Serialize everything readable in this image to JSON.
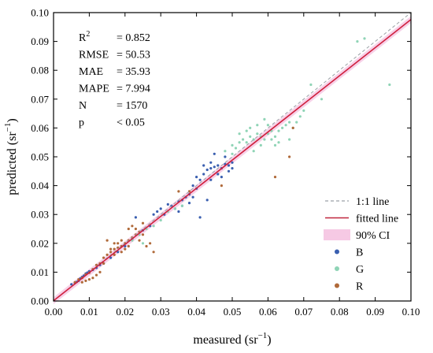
{
  "chart_data": {
    "type": "scatter",
    "xlabel": "measured (sr",
    "ylabel": "predicted (sr",
    "unit_exponent": "−1",
    "xlim": [
      0,
      0.1
    ],
    "ylim": [
      0,
      0.1
    ],
    "xticks": [
      "0.00",
      "0.01",
      "0.02",
      "0.03",
      "0.04",
      "0.05",
      "0.06",
      "0.07",
      "0.08",
      "0.09",
      "0.10"
    ],
    "yticks": [
      "0.00",
      "0.01",
      "0.02",
      "0.03",
      "0.04",
      "0.05",
      "0.06",
      "0.07",
      "0.08",
      "0.09",
      "0.10"
    ],
    "fit": {
      "slope": 0.975,
      "intercept": 0.0001
    },
    "ci_half_width": 0.0012,
    "stats": [
      {
        "label": "R",
        "sup": "2",
        "value": "= 0.852"
      },
      {
        "label": "RMSE",
        "sup": "",
        "value": "= 50.53"
      },
      {
        "label": "MAE",
        "sup": "",
        "value": "= 35.93"
      },
      {
        "label": "MAPE",
        "sup": "",
        "value": "= 7.994"
      },
      {
        "label": "N",
        "sup": "",
        "value": "= 1570"
      },
      {
        "label": "p",
        "sup": "",
        "value": "< 0.05"
      }
    ],
    "legend": {
      "position": "bottom-right",
      "items": [
        {
          "label": "1:1 line",
          "kind": "dash",
          "color": "#9aa0a6"
        },
        {
          "label": "fitted line",
          "kind": "line",
          "color": "#c0263d"
        },
        {
          "label": "90% CI",
          "kind": "band",
          "color": "#f6c9e4"
        },
        {
          "label": "B",
          "kind": "dot",
          "color": "#3a5fb0"
        },
        {
          "label": "G",
          "kind": "dot",
          "color": "#8fd4b6"
        },
        {
          "label": "R",
          "kind": "dot",
          "color": "#b06a3a"
        }
      ]
    },
    "series": [
      {
        "name": "B",
        "color": "#3a5fb0",
        "points": [
          [
            0.005,
            0.0058
          ],
          [
            0.006,
            0.0062
          ],
          [
            0.0065,
            0.0066
          ],
          [
            0.007,
            0.007
          ],
          [
            0.0075,
            0.0078
          ],
          [
            0.008,
            0.0083
          ],
          [
            0.0085,
            0.0088
          ],
          [
            0.009,
            0.0095
          ],
          [
            0.0095,
            0.0098
          ],
          [
            0.01,
            0.0103
          ],
          [
            0.011,
            0.0108
          ],
          [
            0.012,
            0.0115
          ],
          [
            0.013,
            0.0125
          ],
          [
            0.014,
            0.013
          ],
          [
            0.016,
            0.015
          ],
          [
            0.018,
            0.017
          ],
          [
            0.02,
            0.019
          ],
          [
            0.022,
            0.0215
          ],
          [
            0.023,
            0.029
          ],
          [
            0.025,
            0.0245
          ],
          [
            0.027,
            0.026
          ],
          [
            0.028,
            0.03
          ],
          [
            0.029,
            0.031
          ],
          [
            0.03,
            0.032
          ],
          [
            0.031,
            0.03
          ],
          [
            0.032,
            0.0335
          ],
          [
            0.033,
            0.033
          ],
          [
            0.034,
            0.032
          ],
          [
            0.035,
            0.0345
          ],
          [
            0.036,
            0.035
          ],
          [
            0.037,
            0.036
          ],
          [
            0.038,
            0.034
          ],
          [
            0.039,
            0.036
          ],
          [
            0.04,
            0.039
          ],
          [
            0.041,
            0.042
          ],
          [
            0.042,
            0.044
          ],
          [
            0.043,
            0.0455
          ],
          [
            0.044,
            0.046
          ],
          [
            0.045,
            0.0465
          ],
          [
            0.046,
            0.047
          ],
          [
            0.047,
            0.046
          ],
          [
            0.048,
            0.0475
          ],
          [
            0.049,
            0.047
          ],
          [
            0.05,
            0.048
          ],
          [
            0.044,
            0.042
          ],
          [
            0.046,
            0.044
          ],
          [
            0.043,
            0.035
          ],
          [
            0.041,
            0.029
          ],
          [
            0.045,
            0.051
          ],
          [
            0.048,
            0.05
          ],
          [
            0.038,
            0.037
          ],
          [
            0.036,
            0.033
          ],
          [
            0.035,
            0.031
          ],
          [
            0.047,
            0.043
          ],
          [
            0.042,
            0.047
          ],
          [
            0.04,
            0.043
          ],
          [
            0.039,
            0.04
          ],
          [
            0.044,
            0.048
          ],
          [
            0.049,
            0.045
          ],
          [
            0.05,
            0.046
          ]
        ]
      },
      {
        "name": "G",
        "color": "#8fd4b6",
        "points": [
          [
            0.02,
            0.02
          ],
          [
            0.022,
            0.021
          ],
          [
            0.024,
            0.023
          ],
          [
            0.025,
            0.02
          ],
          [
            0.026,
            0.025
          ],
          [
            0.028,
            0.026
          ],
          [
            0.03,
            0.028
          ],
          [
            0.032,
            0.031
          ],
          [
            0.034,
            0.032
          ],
          [
            0.036,
            0.033
          ],
          [
            0.048,
            0.052
          ],
          [
            0.05,
            0.054
          ],
          [
            0.051,
            0.053
          ],
          [
            0.052,
            0.055
          ],
          [
            0.053,
            0.056
          ],
          [
            0.054,
            0.055
          ],
          [
            0.055,
            0.057
          ],
          [
            0.056,
            0.056
          ],
          [
            0.057,
            0.058
          ],
          [
            0.058,
            0.057
          ],
          [
            0.059,
            0.056
          ],
          [
            0.06,
            0.058
          ],
          [
            0.061,
            0.059
          ],
          [
            0.062,
            0.057
          ],
          [
            0.063,
            0.059
          ],
          [
            0.064,
            0.06
          ],
          [
            0.065,
            0.061
          ],
          [
            0.066,
            0.062
          ],
          [
            0.067,
            0.06
          ],
          [
            0.068,
            0.062
          ],
          [
            0.055,
            0.06
          ],
          [
            0.057,
            0.061
          ],
          [
            0.059,
            0.063
          ],
          [
            0.061,
            0.056
          ],
          [
            0.063,
            0.055
          ],
          [
            0.058,
            0.054
          ],
          [
            0.056,
            0.052
          ],
          [
            0.054,
            0.059
          ],
          [
            0.052,
            0.058
          ],
          [
            0.05,
            0.051
          ],
          [
            0.072,
            0.075
          ],
          [
            0.075,
            0.07
          ],
          [
            0.085,
            0.09
          ],
          [
            0.087,
            0.091
          ],
          [
            0.094,
            0.075
          ],
          [
            0.07,
            0.066
          ],
          [
            0.066,
            0.056
          ],
          [
            0.062,
            0.054
          ],
          [
            0.06,
            0.061
          ],
          [
            0.069,
            0.064
          ]
        ]
      },
      {
        "name": "R",
        "color": "#b06a3a",
        "points": [
          [
            0.006,
            0.0065
          ],
          [
            0.007,
            0.0075
          ],
          [
            0.008,
            0.008
          ],
          [
            0.009,
            0.0092
          ],
          [
            0.01,
            0.0098
          ],
          [
            0.011,
            0.011
          ],
          [
            0.012,
            0.0125
          ],
          [
            0.013,
            0.013
          ],
          [
            0.014,
            0.015
          ],
          [
            0.015,
            0.016
          ],
          [
            0.016,
            0.017
          ],
          [
            0.017,
            0.018
          ],
          [
            0.018,
            0.0185
          ],
          [
            0.019,
            0.019
          ],
          [
            0.02,
            0.02
          ],
          [
            0.021,
            0.021
          ],
          [
            0.022,
            0.022
          ],
          [
            0.023,
            0.023
          ],
          [
            0.024,
            0.024
          ],
          [
            0.025,
            0.023
          ],
          [
            0.016,
            0.018
          ],
          [
            0.017,
            0.016
          ],
          [
            0.018,
            0.02
          ],
          [
            0.019,
            0.017
          ],
          [
            0.02,
            0.018
          ],
          [
            0.021,
            0.019
          ],
          [
            0.022,
            0.026
          ],
          [
            0.023,
            0.025
          ],
          [
            0.024,
            0.021
          ],
          [
            0.026,
            0.019
          ],
          [
            0.027,
            0.02
          ],
          [
            0.028,
            0.017
          ],
          [
            0.015,
            0.021
          ],
          [
            0.014,
            0.013
          ],
          [
            0.013,
            0.01
          ],
          [
            0.012,
            0.009
          ],
          [
            0.011,
            0.008
          ],
          [
            0.01,
            0.0075
          ],
          [
            0.009,
            0.007
          ],
          [
            0.008,
            0.0065
          ],
          [
            0.035,
            0.038
          ],
          [
            0.038,
            0.038
          ],
          [
            0.047,
            0.04
          ],
          [
            0.066,
            0.05
          ],
          [
            0.067,
            0.06
          ],
          [
            0.062,
            0.043
          ],
          [
            0.025,
            0.027
          ],
          [
            0.021,
            0.025
          ],
          [
            0.019,
            0.021
          ],
          [
            0.017,
            0.02
          ]
        ]
      }
    ]
  }
}
